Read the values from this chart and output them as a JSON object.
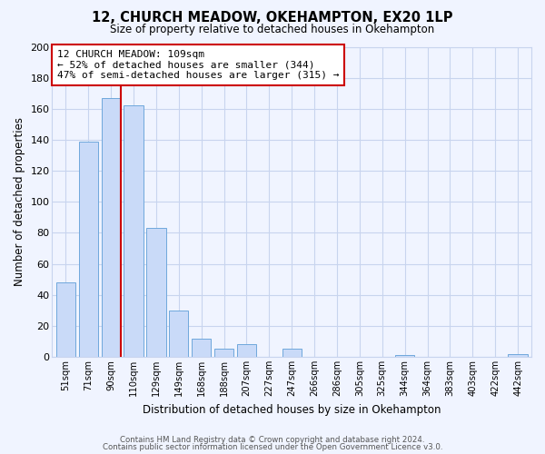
{
  "title": "12, CHURCH MEADOW, OKEHAMPTON, EX20 1LP",
  "subtitle": "Size of property relative to detached houses in Okehampton",
  "xlabel": "Distribution of detached houses by size in Okehampton",
  "ylabel": "Number of detached properties",
  "bar_labels": [
    "51sqm",
    "71sqm",
    "90sqm",
    "110sqm",
    "129sqm",
    "149sqm",
    "168sqm",
    "188sqm",
    "207sqm",
    "227sqm",
    "247sqm",
    "266sqm",
    "286sqm",
    "305sqm",
    "325sqm",
    "344sqm",
    "364sqm",
    "383sqm",
    "403sqm",
    "422sqm",
    "442sqm"
  ],
  "bar_values": [
    48,
    139,
    167,
    162,
    83,
    30,
    12,
    5,
    8,
    0,
    5,
    0,
    0,
    0,
    0,
    1,
    0,
    0,
    0,
    0,
    2
  ],
  "bar_color": "#c9daf8",
  "bar_edge_color": "#6fa8dc",
  "subject_line_color": "#cc0000",
  "annotation_line1": "12 CHURCH MEADOW: 109sqm",
  "annotation_line2": "← 52% of detached houses are smaller (344)",
  "annotation_line3": "47% of semi-detached houses are larger (315) →",
  "annotation_box_color": "#ffffff",
  "annotation_box_edge": "#cc0000",
  "ylim": [
    0,
    200
  ],
  "yticks": [
    0,
    20,
    40,
    60,
    80,
    100,
    120,
    140,
    160,
    180,
    200
  ],
  "footer_line1": "Contains HM Land Registry data © Crown copyright and database right 2024.",
  "footer_line2": "Contains public sector information licensed under the Open Government Licence v3.0.",
  "bg_color": "#f0f4ff",
  "grid_color": "#c8d4ee"
}
